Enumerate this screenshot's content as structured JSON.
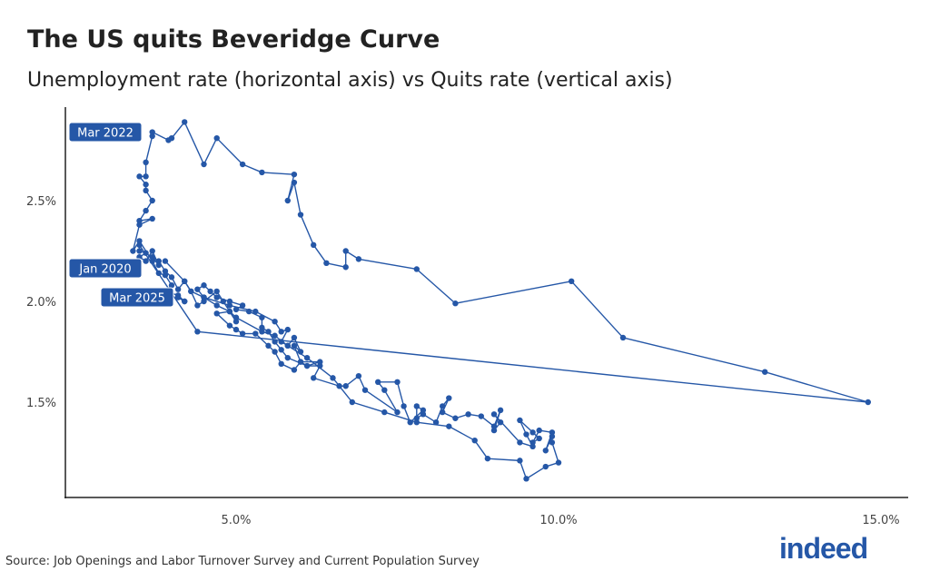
{
  "title": "The US quits Beveridge Curve",
  "subtitle": "Unemployment rate (horizontal axis) vs Quits rate (vertical axis)",
  "source": "Source: Job Openings and Labor Turnover Survey and Current Population Survey",
  "logo_text": "indeed",
  "colors": {
    "series": "#2557a7",
    "label_bg": "#2557a7",
    "label_text": "#ffffff"
  },
  "chart_data": {
    "type": "line",
    "markers": true,
    "title": "The US quits Beveridge Curve",
    "subtitle": "Unemployment rate (horizontal axis) vs Quits rate (vertical axis)",
    "xlabel": "",
    "ylabel": "",
    "xlim": [
      2.35,
      15.3
    ],
    "ylim": [
      1.03,
      2.95
    ],
    "x_ticks": [
      {
        "value": 5,
        "label": "5.0%"
      },
      {
        "value": 10,
        "label": "10.0%"
      },
      {
        "value": 15,
        "label": "15.0%"
      }
    ],
    "y_ticks": [
      {
        "value": 1.5,
        "label": "1.5%"
      },
      {
        "value": 2.0,
        "label": "2.0%"
      },
      {
        "value": 2.5,
        "label": "2.5%"
      }
    ],
    "grid": false,
    "annotations": [
      {
        "text": "Mar 2022",
        "x": 3.7,
        "y": 2.84
      },
      {
        "text": "Jan 2020",
        "x": 3.5,
        "y": 2.25
      },
      {
        "text": "Mar 2025",
        "x": 4.2,
        "y": 2.0
      }
    ],
    "points": [
      [
        3.9,
        2.2
      ],
      [
        4.2,
        2.1
      ],
      [
        4.3,
        2.05
      ],
      [
        4.5,
        2.02
      ],
      [
        4.9,
        1.98
      ],
      [
        5.3,
        1.95
      ],
      [
        5.6,
        1.9
      ],
      [
        5.7,
        1.85
      ],
      [
        5.8,
        1.86
      ],
      [
        5.7,
        1.8
      ],
      [
        5.8,
        1.78
      ],
      [
        5.9,
        1.82
      ],
      [
        6.0,
        1.75
      ],
      [
        5.9,
        1.78
      ],
      [
        6.0,
        1.7
      ],
      [
        6.3,
        1.7
      ],
      [
        6.1,
        1.68
      ],
      [
        5.8,
        1.72
      ],
      [
        5.7,
        1.76
      ],
      [
        5.6,
        1.8
      ],
      [
        5.5,
        1.85
      ],
      [
        5.4,
        1.87
      ],
      [
        5.4,
        1.92
      ],
      [
        5.2,
        1.95
      ],
      [
        5.0,
        1.96
      ],
      [
        5.1,
        1.98
      ],
      [
        4.9,
        2.0
      ],
      [
        4.7,
        2.02
      ],
      [
        4.6,
        2.05
      ],
      [
        4.5,
        2.08
      ],
      [
        4.4,
        2.06
      ],
      [
        4.5,
        2.02
      ],
      [
        4.7,
        1.98
      ],
      [
        4.9,
        1.95
      ],
      [
        5.0,
        1.92
      ],
      [
        5.4,
        1.85
      ],
      [
        5.6,
        1.83
      ],
      [
        5.8,
        1.78
      ],
      [
        6.1,
        1.72
      ],
      [
        6.5,
        1.62
      ],
      [
        6.8,
        1.5
      ],
      [
        7.3,
        1.45
      ],
      [
        7.8,
        1.4
      ],
      [
        8.3,
        1.38
      ],
      [
        8.7,
        1.31
      ],
      [
        8.9,
        1.22
      ],
      [
        9.4,
        1.21
      ],
      [
        9.5,
        1.12
      ],
      [
        9.8,
        1.18
      ],
      [
        10.0,
        1.2
      ],
      [
        9.9,
        1.3
      ],
      [
        9.9,
        1.33
      ],
      [
        9.8,
        1.26
      ],
      [
        9.9,
        1.35
      ],
      [
        9.7,
        1.36
      ],
      [
        9.6,
        1.3
      ],
      [
        9.7,
        1.32
      ],
      [
        9.6,
        1.35
      ],
      [
        9.4,
        1.41
      ],
      [
        9.5,
        1.34
      ],
      [
        9.6,
        1.28
      ],
      [
        9.4,
        1.3
      ],
      [
        9.0,
        1.44
      ],
      [
        9.1,
        1.4
      ],
      [
        9.0,
        1.36
      ],
      [
        9.1,
        1.46
      ],
      [
        9.0,
        1.38
      ],
      [
        8.8,
        1.43
      ],
      [
        8.6,
        1.44
      ],
      [
        8.4,
        1.42
      ],
      [
        8.2,
        1.45
      ],
      [
        8.3,
        1.52
      ],
      [
        8.2,
        1.48
      ],
      [
        8.1,
        1.4
      ],
      [
        7.9,
        1.44
      ],
      [
        7.8,
        1.42
      ],
      [
        7.8,
        1.48
      ],
      [
        7.9,
        1.46
      ],
      [
        7.7,
        1.4
      ],
      [
        7.6,
        1.48
      ],
      [
        7.5,
        1.6
      ],
      [
        7.2,
        1.6
      ],
      [
        7.3,
        1.56
      ],
      [
        7.5,
        1.45
      ],
      [
        7.0,
        1.56
      ],
      [
        6.9,
        1.63
      ],
      [
        6.7,
        1.58
      ],
      [
        6.6,
        1.58
      ],
      [
        6.2,
        1.62
      ],
      [
        6.3,
        1.68
      ],
      [
        6.1,
        1.68
      ],
      [
        6.0,
        1.7
      ],
      [
        5.9,
        1.66
      ],
      [
        5.7,
        1.69
      ],
      [
        5.6,
        1.75
      ],
      [
        5.5,
        1.78
      ],
      [
        5.3,
        1.84
      ],
      [
        5.1,
        1.84
      ],
      [
        5.0,
        1.86
      ],
      [
        4.9,
        1.88
      ],
      [
        4.7,
        1.94
      ],
      [
        4.9,
        1.95
      ],
      [
        5.0,
        1.9
      ],
      [
        4.8,
        2.0
      ],
      [
        4.7,
        2.05
      ],
      [
        4.5,
        2.0
      ],
      [
        4.4,
        1.98
      ],
      [
        4.3,
        2.05
      ],
      [
        4.2,
        2.1
      ],
      [
        4.1,
        2.06
      ],
      [
        4.0,
        2.12
      ],
      [
        3.9,
        2.15
      ],
      [
        3.8,
        2.2
      ],
      [
        3.7,
        2.22
      ],
      [
        3.8,
        2.18
      ],
      [
        3.7,
        2.25
      ],
      [
        3.6,
        2.2
      ],
      [
        3.5,
        2.22
      ],
      [
        3.6,
        2.24
      ],
      [
        3.5,
        2.25
      ],
      [
        3.5,
        2.28
      ],
      [
        4.4,
        1.85
      ],
      [
        14.8,
        1.5
      ],
      [
        13.2,
        1.65
      ],
      [
        11.0,
        1.82
      ],
      [
        10.2,
        2.1
      ],
      [
        8.4,
        1.99
      ],
      [
        7.8,
        2.16
      ],
      [
        6.9,
        2.21
      ],
      [
        6.7,
        2.25
      ],
      [
        6.7,
        2.17
      ],
      [
        6.4,
        2.19
      ],
      [
        6.2,
        2.28
      ],
      [
        6.0,
        2.43
      ],
      [
        5.9,
        2.59
      ],
      [
        5.8,
        2.5
      ],
      [
        5.9,
        2.63
      ],
      [
        5.4,
        2.64
      ],
      [
        5.1,
        2.68
      ],
      [
        4.7,
        2.81
      ],
      [
        4.5,
        2.68
      ],
      [
        4.2,
        2.89
      ],
      [
        4.0,
        2.81
      ],
      [
        3.95,
        2.8
      ],
      [
        3.7,
        2.84
      ],
      [
        3.7,
        2.82
      ],
      [
        3.6,
        2.69
      ],
      [
        3.6,
        2.62
      ],
      [
        3.5,
        2.62
      ],
      [
        3.6,
        2.58
      ],
      [
        3.6,
        2.55
      ],
      [
        3.7,
        2.5
      ],
      [
        3.6,
        2.45
      ],
      [
        3.5,
        2.4
      ],
      [
        3.7,
        2.41
      ],
      [
        3.5,
        2.38
      ],
      [
        3.4,
        2.25
      ],
      [
        3.5,
        2.3
      ],
      [
        3.7,
        2.2
      ],
      [
        3.8,
        2.14
      ],
      [
        3.9,
        2.13
      ],
      [
        4.0,
        2.08
      ],
      [
        3.9,
        2.05
      ],
      [
        4.1,
        2.03
      ],
      [
        4.2,
        2.0
      ],
      [
        4.1,
        2.02
      ],
      [
        4.2,
        2.0
      ]
    ]
  }
}
